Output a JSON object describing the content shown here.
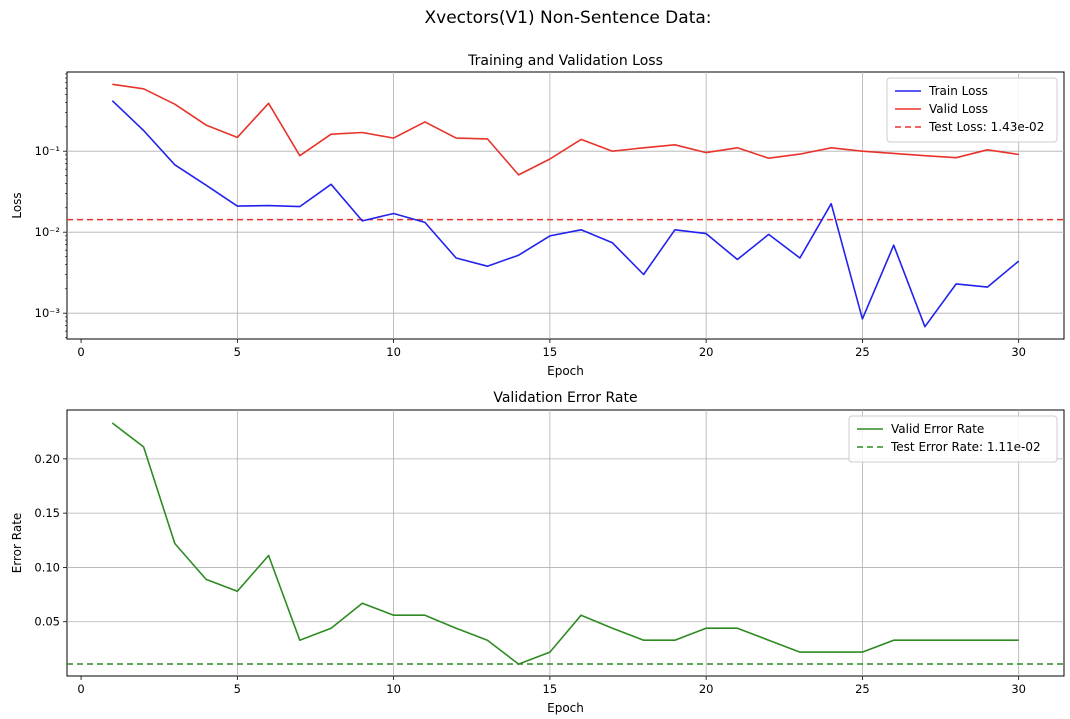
{
  "suptitle": "Xvectors(V1) Non-Sentence Data:",
  "chart_data": [
    {
      "type": "line",
      "title": "Training and Validation Loss",
      "xlabel": "Epoch",
      "ylabel": "Loss",
      "yscale": "log",
      "xlim": [
        -0.45,
        31.45
      ],
      "ylim": [
        0.00048,
        0.95
      ],
      "xticks": [
        "0",
        "5",
        "10",
        "15",
        "20",
        "25",
        "30"
      ],
      "yticks": [
        "10⁻³",
        "10⁻²",
        "10⁻¹"
      ],
      "grid": true,
      "legend_position": "upper right",
      "x": [
        1,
        2,
        3,
        4,
        5,
        6,
        7,
        8,
        9,
        10,
        11,
        12,
        13,
        14,
        15,
        16,
        17,
        18,
        19,
        20,
        21,
        22,
        23,
        24,
        25,
        26,
        27,
        28,
        29,
        30
      ],
      "series": [
        {
          "name": "Train Loss",
          "color": "#2222ee",
          "style": "solid",
          "values": [
            0.42,
            0.18,
            0.068,
            0.038,
            0.021,
            0.0213,
            0.0207,
            0.039,
            0.0138,
            0.017,
            0.0132,
            0.0048,
            0.0038,
            0.0052,
            0.009,
            0.0107,
            0.0074,
            0.003,
            0.0107,
            0.0096,
            0.0046,
            0.0094,
            0.0048,
            0.0225,
            0.00085,
            0.0069,
            0.00068,
            0.0023,
            0.0021,
            0.0044
          ]
        },
        {
          "name": "Valid Loss",
          "color": "#e8332a",
          "style": "solid",
          "values": [
            0.67,
            0.59,
            0.38,
            0.21,
            0.148,
            0.39,
            0.088,
            0.162,
            0.17,
            0.145,
            0.23,
            0.145,
            0.142,
            0.051,
            0.08,
            0.14,
            0.1,
            0.11,
            0.12,
            0.096,
            0.11,
            0.082,
            0.092,
            0.11,
            0.1,
            0.094,
            0.088,
            0.083,
            0.104,
            0.091
          ]
        }
      ],
      "reference_lines": [
        {
          "name": "Test Loss: 1.43e-02",
          "value": 0.0143,
          "color": "#e8332a",
          "style": "dashed"
        }
      ]
    },
    {
      "type": "line",
      "title": "Validation Error Rate",
      "xlabel": "Epoch",
      "ylabel": "Error Rate",
      "yscale": "linear",
      "xlim": [
        -0.45,
        31.45
      ],
      "ylim": [
        0.0,
        0.245
      ],
      "xticks": [
        "0",
        "5",
        "10",
        "15",
        "20",
        "25",
        "30"
      ],
      "yticks": [
        "0.05",
        "0.10",
        "0.15",
        "0.20"
      ],
      "grid": true,
      "legend_position": "upper right",
      "x": [
        1,
        2,
        3,
        4,
        5,
        6,
        7,
        8,
        9,
        10,
        11,
        12,
        13,
        14,
        15,
        16,
        17,
        18,
        19,
        20,
        21,
        22,
        23,
        24,
        25,
        26,
        27,
        28,
        29,
        30
      ],
      "series": [
        {
          "name": "Valid Error Rate",
          "color": "#2e8b22",
          "style": "solid",
          "values": [
            0.233,
            0.211,
            0.122,
            0.089,
            0.078,
            0.111,
            0.033,
            0.044,
            0.067,
            0.056,
            0.056,
            0.044,
            0.033,
            0.011,
            0.022,
            0.056,
            0.044,
            0.033,
            0.033,
            0.044,
            0.044,
            0.033,
            0.022,
            0.022,
            0.022,
            0.033,
            0.033,
            0.033,
            0.033,
            0.033
          ]
        }
      ],
      "reference_lines": [
        {
          "name": "Test Error Rate: 1.11e-02",
          "value": 0.0111,
          "color": "#2e8b22",
          "style": "dashed"
        }
      ]
    }
  ]
}
